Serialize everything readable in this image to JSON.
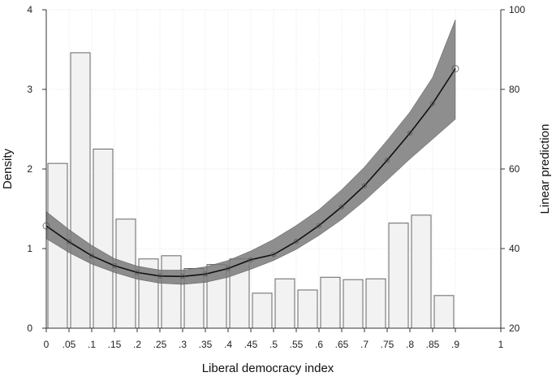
{
  "chart_data": {
    "type": "bar",
    "xlabel": "Liberal democracy index",
    "ylabel_left": "Density",
    "ylabel_right": "Linear prediction",
    "xlim": [
      0,
      1
    ],
    "ylim_left": [
      0,
      4
    ],
    "ylim_right": [
      20,
      100
    ],
    "x_ticks": [
      "0",
      ".05",
      ".1",
      ".15",
      ".2",
      ".25",
      ".3",
      ".35",
      ".4",
      ".45",
      ".5",
      ".55",
      ".6",
      ".65",
      ".7",
      ".75",
      ".8",
      ".85",
      ".9",
      "1"
    ],
    "x_tick_values": [
      0,
      0.05,
      0.1,
      0.15,
      0.2,
      0.25,
      0.3,
      0.35,
      0.4,
      0.45,
      0.5,
      0.55,
      0.6,
      0.65,
      0.7,
      0.75,
      0.8,
      0.85,
      0.9,
      1
    ],
    "y_left_ticks": [
      "0",
      "1",
      "2",
      "3",
      "4"
    ],
    "y_left_tick_values": [
      0,
      1,
      2,
      3,
      4
    ],
    "y_right_ticks": [
      "20",
      "40",
      "60",
      "80",
      "100"
    ],
    "y_right_tick_values": [
      20,
      40,
      60,
      80,
      100
    ],
    "grid": true,
    "histogram": {
      "bin_width": 0.05,
      "bin_starts": [
        0,
        0.05,
        0.1,
        0.15,
        0.2,
        0.25,
        0.3,
        0.35,
        0.4,
        0.45,
        0.5,
        0.55,
        0.6,
        0.65,
        0.7,
        0.75,
        0.8,
        0.85
      ],
      "densities": [
        2.07,
        3.46,
        2.25,
        1.37,
        0.87,
        0.91,
        0.75,
        0.8,
        0.87,
        0.44,
        0.62,
        0.48,
        0.64,
        0.61,
        0.62,
        1.32,
        1.42,
        0.41
      ],
      "fill": "#f2f2f2",
      "stroke": "#666666"
    },
    "prediction": {
      "x": [
        0,
        0.05,
        0.1,
        0.15,
        0.2,
        0.25,
        0.3,
        0.35,
        0.4,
        0.45,
        0.5,
        0.55,
        0.6,
        0.65,
        0.7,
        0.75,
        0.8,
        0.85,
        0.9
      ],
      "y": [
        45.7,
        41.7,
        38.2,
        35.7,
        34.0,
        33.1,
        33.0,
        33.6,
        35.0,
        37.2,
        38.5,
        41.8,
        45.8,
        50.5,
        55.8,
        62.2,
        69.0,
        76.4,
        85.2
      ],
      "ci_lower": [
        42.5,
        39.0,
        36.1,
        34.0,
        32.3,
        31.3,
        31.0,
        31.5,
        32.8,
        34.8,
        37.0,
        39.8,
        43.3,
        47.3,
        52.0,
        57.2,
        62.5,
        67.5,
        72.5
      ],
      "ci_upper": [
        49.3,
        44.8,
        40.8,
        37.5,
        35.6,
        34.6,
        34.6,
        35.4,
        37.0,
        39.4,
        42.3,
        45.8,
        49.8,
        54.8,
        60.5,
        67.2,
        74.3,
        83.0,
        97.5
      ],
      "line_color": "#111111",
      "band_color": "#7a7a7a"
    }
  }
}
